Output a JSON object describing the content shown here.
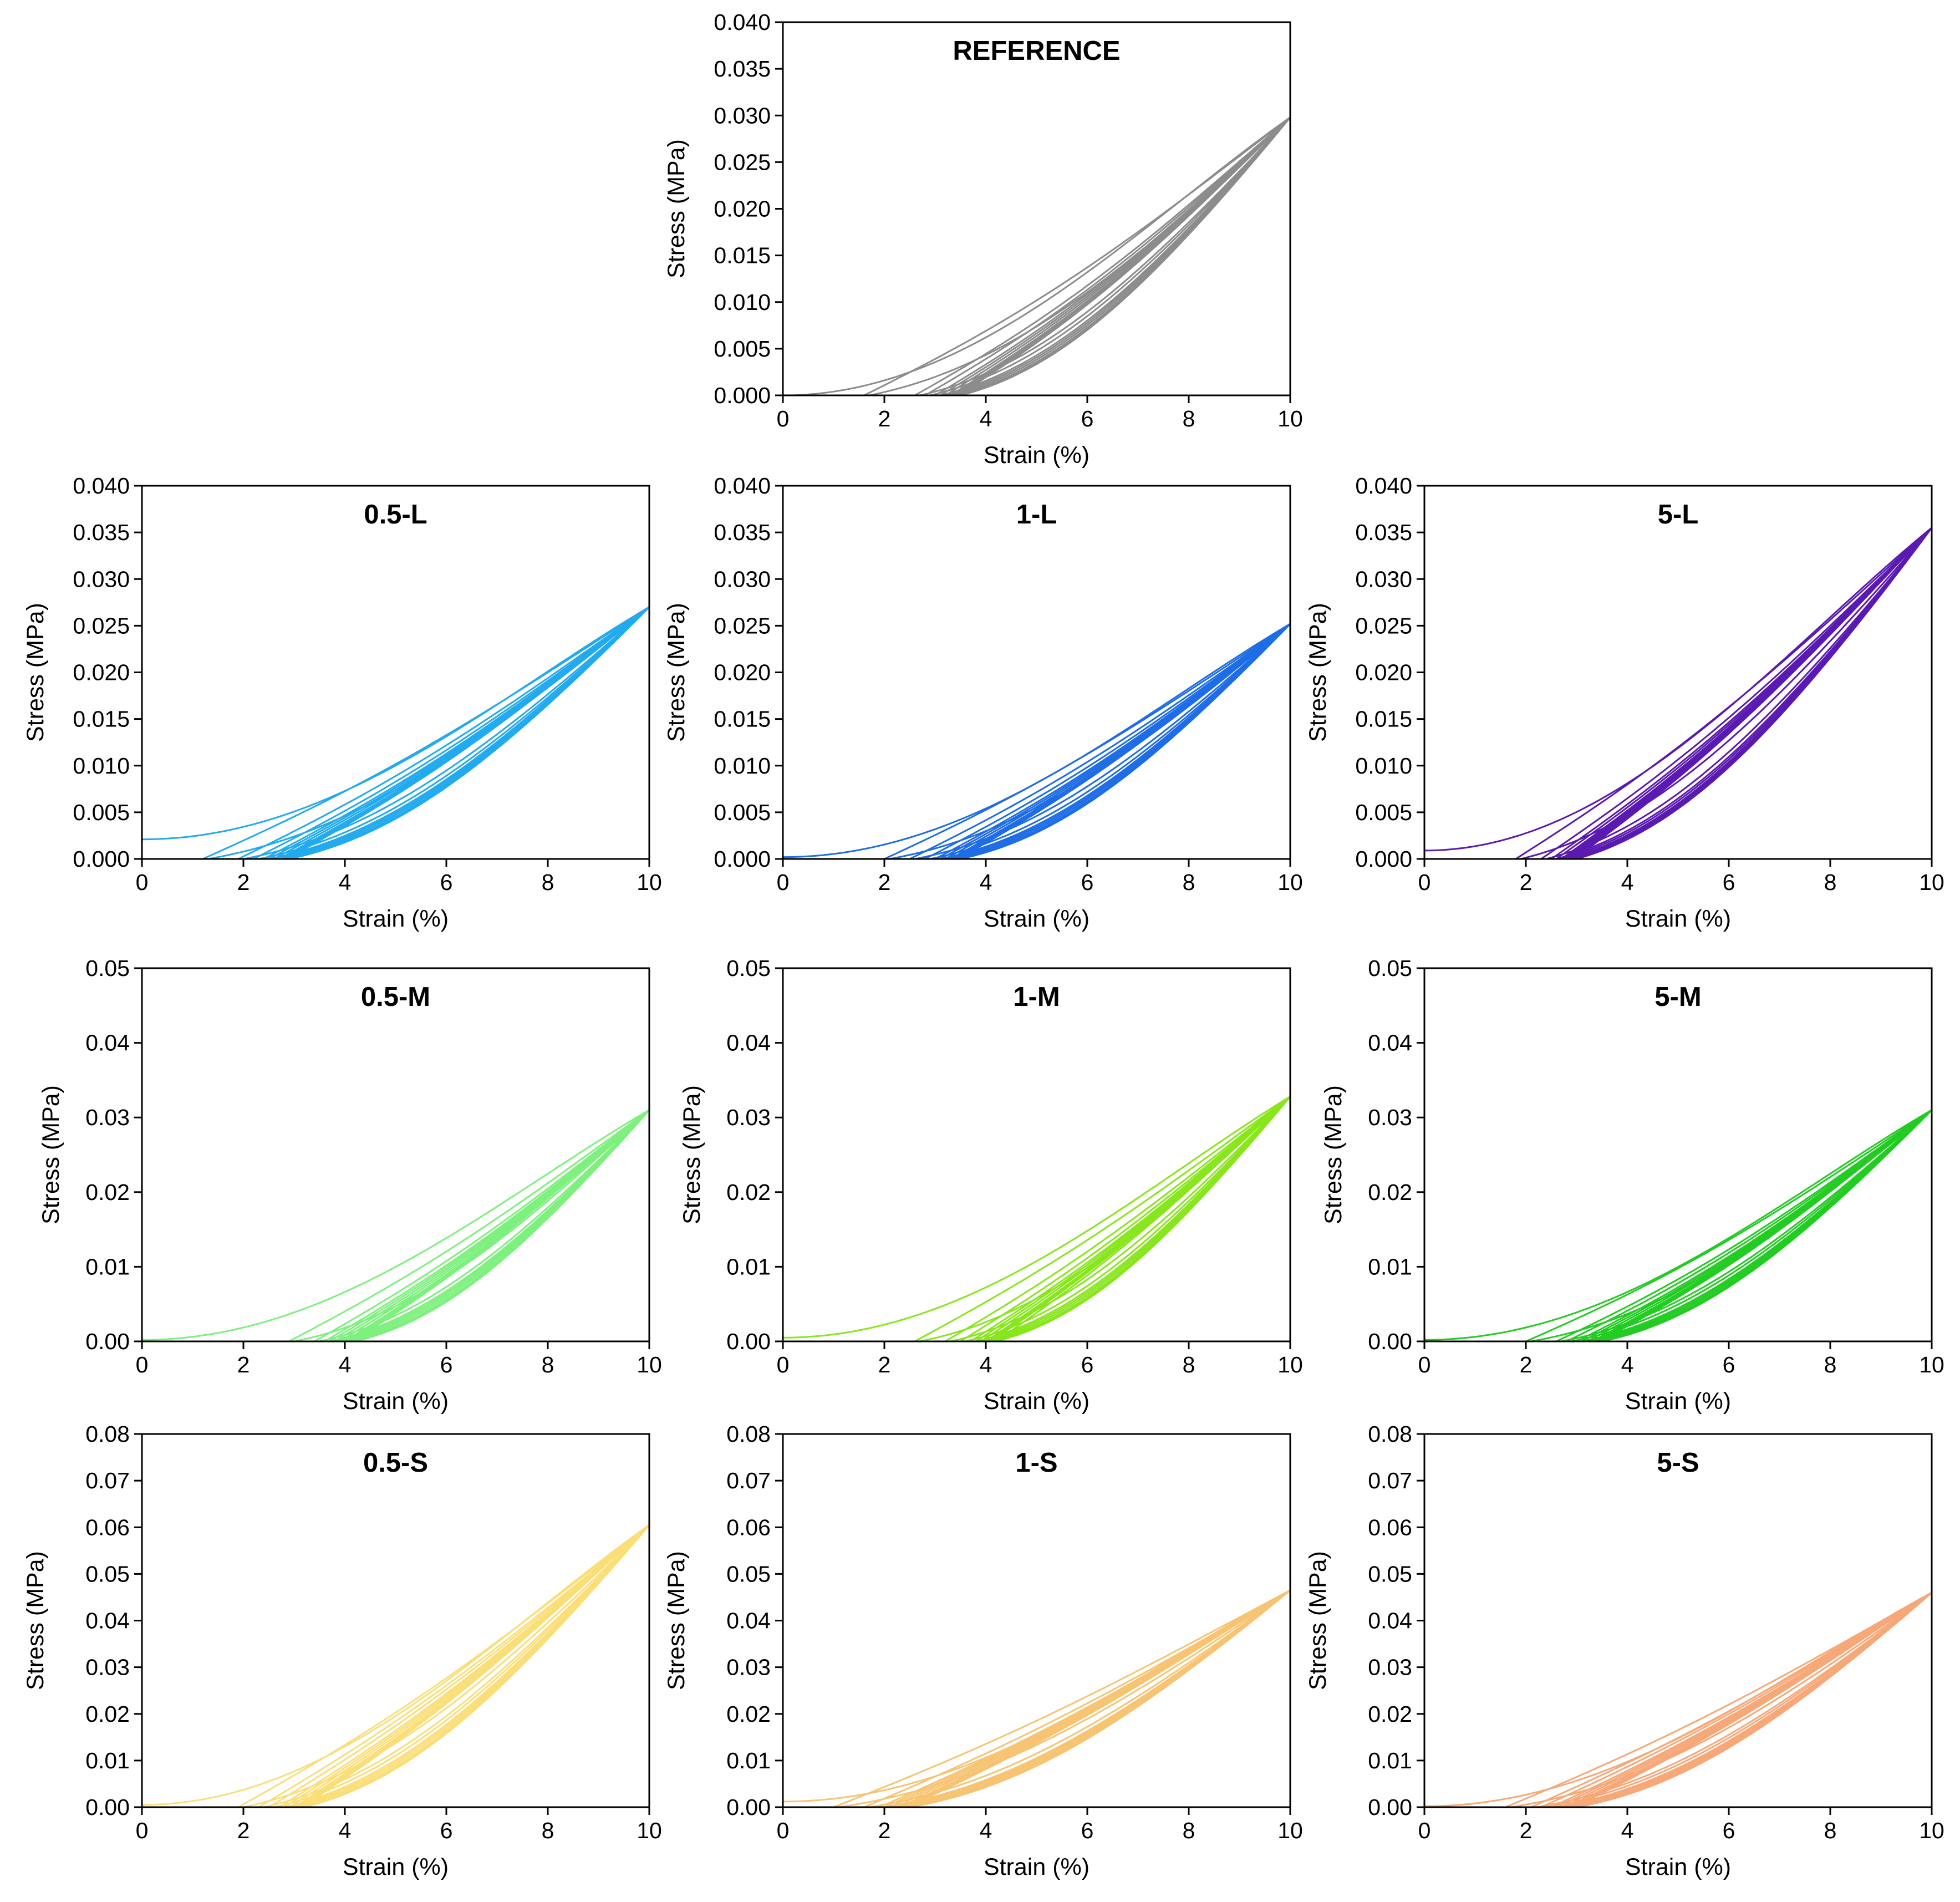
{
  "figure": {
    "description_units": "Strain in percent, stress in MPa"
  },
  "chart_data": [
    {
      "id": "reference",
      "type": "line",
      "title": "REFERENCE",
      "xlabel": "Strain (%)",
      "ylabel": "Stress (MPa)",
      "xlim": [
        0,
        10
      ],
      "ylim": [
        0,
        0.04
      ],
      "xticks": [
        0,
        2,
        4,
        6,
        8,
        10
      ],
      "yticks": [
        "0.000",
        "0.005",
        "0.010",
        "0.015",
        "0.020",
        "0.025",
        "0.030",
        "0.035",
        "0.040"
      ],
      "grid": false,
      "color": "#8c8c8c",
      "peak_stress": 0.0298,
      "first_loading_start_stress": 0.0,
      "residual_strains": [
        1.6,
        2.6,
        2.8,
        3.0,
        3.1,
        3.2,
        3.3,
        3.35,
        3.4,
        3.45
      ],
      "unloading_arc_max": 0.0045
    },
    {
      "id": "p05L",
      "type": "line",
      "title": "0.5-L",
      "xlabel": "Strain (%)",
      "ylabel": "Stress (MPa)",
      "xlim": [
        0,
        10
      ],
      "ylim": [
        0,
        0.04
      ],
      "xticks": [
        0,
        2,
        4,
        6,
        8,
        10
      ],
      "yticks": [
        "0.000",
        "0.005",
        "0.010",
        "0.015",
        "0.020",
        "0.025",
        "0.030",
        "0.035",
        "0.040"
      ],
      "grid": false,
      "color": "#22aaee",
      "peak_stress": 0.027,
      "first_loading_start_stress": 0.0021,
      "residual_strains": [
        1.2,
        1.9,
        2.2,
        2.4,
        2.5,
        2.6,
        2.7,
        2.75,
        2.8,
        2.85
      ],
      "unloading_arc_max": 0.0035
    },
    {
      "id": "p1L",
      "type": "line",
      "title": "1-L",
      "xlabel": "Strain (%)",
      "ylabel": "Stress (MPa)",
      "xlim": [
        0,
        10
      ],
      "ylim": [
        0,
        0.04
      ],
      "xticks": [
        0,
        2,
        4,
        6,
        8,
        10
      ],
      "yticks": [
        "0.000",
        "0.005",
        "0.010",
        "0.015",
        "0.020",
        "0.025",
        "0.030",
        "0.035",
        "0.040"
      ],
      "grid": false,
      "color": "#1f6de6",
      "peak_stress": 0.0252,
      "first_loading_start_stress": 0.0002,
      "residual_strains": [
        2.0,
        2.5,
        2.8,
        3.0,
        3.1,
        3.2,
        3.3,
        3.35,
        3.4,
        3.45
      ],
      "unloading_arc_max": 0.0032
    },
    {
      "id": "p5L",
      "type": "line",
      "title": "5-L",
      "xlabel": "Strain (%)",
      "ylabel": "Stress (MPa)",
      "xlim": [
        0,
        10
      ],
      "ylim": [
        0,
        0.04
      ],
      "xticks": [
        0,
        2,
        4,
        6,
        8,
        10
      ],
      "yticks": [
        "0.000",
        "0.005",
        "0.010",
        "0.015",
        "0.020",
        "0.025",
        "0.030",
        "0.035",
        "0.040"
      ],
      "grid": false,
      "color": "#5a1ab2",
      "peak_stress": 0.0355,
      "first_loading_start_stress": 0.0009,
      "residual_strains": [
        1.8,
        2.3,
        2.5,
        2.6,
        2.7,
        2.75,
        2.8,
        2.85,
        2.9,
        2.95
      ],
      "unloading_arc_max": 0.0045
    },
    {
      "id": "p05M",
      "type": "line",
      "title": "0.5-M",
      "xlabel": "Strain (%)",
      "ylabel": "Stress (MPa)",
      "xlim": [
        0,
        10
      ],
      "ylim": [
        0,
        0.05
      ],
      "xticks": [
        0,
        2,
        4,
        6,
        8,
        10
      ],
      "yticks": [
        "0.00",
        "0.01",
        "0.02",
        "0.03",
        "0.04",
        "0.05"
      ],
      "grid": false,
      "color": "#7ef07e",
      "peak_stress": 0.031,
      "first_loading_start_stress": 0.0002,
      "residual_strains": [
        2.9,
        3.4,
        3.6,
        3.7,
        3.8,
        3.9,
        4.0,
        4.05,
        4.1,
        4.15
      ],
      "unloading_arc_max": 0.0035
    },
    {
      "id": "p1M",
      "type": "line",
      "title": "1-M",
      "xlabel": "Strain (%)",
      "ylabel": "Stress (MPa)",
      "xlim": [
        0,
        10
      ],
      "ylim": [
        0,
        0.05
      ],
      "xticks": [
        0,
        2,
        4,
        6,
        8,
        10
      ],
      "yticks": [
        "0.00",
        "0.01",
        "0.02",
        "0.03",
        "0.04",
        "0.05"
      ],
      "grid": false,
      "color": "#88e61c",
      "peak_stress": 0.0328,
      "first_loading_start_stress": 0.0005,
      "residual_strains": [
        2.6,
        3.2,
        3.5,
        3.7,
        3.8,
        3.9,
        4.0,
        4.05,
        4.1,
        4.2
      ],
      "unloading_arc_max": 0.0035
    },
    {
      "id": "p5M",
      "type": "line",
      "title": "5-M",
      "xlabel": "Strain (%)",
      "ylabel": "Stress (MPa)",
      "xlim": [
        0,
        10
      ],
      "ylim": [
        0,
        0.05
      ],
      "xticks": [
        0,
        2,
        4,
        6,
        8,
        10
      ],
      "yticks": [
        "0.00",
        "0.01",
        "0.02",
        "0.03",
        "0.04",
        "0.05"
      ],
      "grid": false,
      "color": "#22cc22",
      "peak_stress": 0.031,
      "first_loading_start_stress": 0.0002,
      "residual_strains": [
        2.0,
        2.6,
        2.8,
        3.0,
        3.1,
        3.2,
        3.3,
        3.35,
        3.4,
        3.45
      ],
      "unloading_arc_max": 0.0045
    },
    {
      "id": "p05S",
      "type": "line",
      "title": "0.5-S",
      "xlabel": "Strain (%)",
      "ylabel": "Stress (MPa)",
      "xlim": [
        0,
        10
      ],
      "ylim": [
        0,
        0.08
      ],
      "xticks": [
        0,
        2,
        4,
        6,
        8,
        10
      ],
      "yticks": [
        "0.00",
        "0.01",
        "0.02",
        "0.03",
        "0.04",
        "0.05",
        "0.06",
        "0.07",
        "0.08"
      ],
      "grid": false,
      "color": "#fade78",
      "peak_stress": 0.0605,
      "first_loading_start_stress": 0.0005,
      "residual_strains": [
        1.9,
        2.3,
        2.5,
        2.7,
        2.8,
        2.9,
        3.0,
        3.05,
        3.1,
        3.15
      ],
      "unloading_arc_max": 0.007
    },
    {
      "id": "p1S",
      "type": "line",
      "title": "1-S",
      "xlabel": "Strain (%)",
      "ylabel": "Stress (MPa)",
      "xlim": [
        0,
        10
      ],
      "ylim": [
        0,
        0.08
      ],
      "xticks": [
        0,
        2,
        4,
        6,
        8,
        10
      ],
      "yticks": [
        "0.00",
        "0.01",
        "0.02",
        "0.03",
        "0.04",
        "0.05",
        "0.06",
        "0.07",
        "0.08"
      ],
      "grid": false,
      "color": "#f6c472",
      "peak_stress": 0.0465,
      "first_loading_start_stress": 0.0012,
      "residual_strains": [
        1.0,
        1.6,
        1.9,
        2.0,
        2.1,
        2.2,
        2.3,
        2.35,
        2.4,
        2.45
      ],
      "unloading_arc_max": 0.005
    },
    {
      "id": "p5S",
      "type": "line",
      "title": "5-S",
      "xlabel": "Strain (%)",
      "ylabel": "Stress (MPa)",
      "xlim": [
        0,
        10
      ],
      "ylim": [
        0,
        0.08
      ],
      "xticks": [
        0,
        2,
        4,
        6,
        8,
        10
      ],
      "yticks": [
        "0.00",
        "0.01",
        "0.02",
        "0.03",
        "0.04",
        "0.05",
        "0.06",
        "0.07",
        "0.08"
      ],
      "grid": false,
      "color": "#f6a878",
      "peak_stress": 0.046,
      "first_loading_start_stress": 0.0002,
      "residual_strains": [
        1.6,
        2.1,
        2.3,
        2.5,
        2.6,
        2.7,
        2.8,
        2.85,
        2.9,
        2.95
      ],
      "unloading_arc_max": 0.005
    }
  ]
}
